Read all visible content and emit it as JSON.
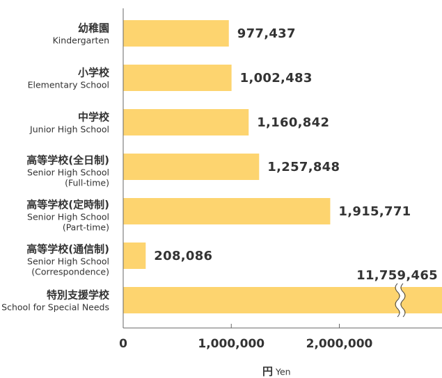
{
  "chart_data": {
    "type": "barh",
    "categories": [
      "幼稚園",
      "小学校",
      "中学校",
      "高等学校(全日制)",
      "高等学校(定時制)",
      "高等学校(通信制)",
      "特別支援学校"
    ],
    "categories_en": [
      [
        "Kindergarten"
      ],
      [
        "Elementary School"
      ],
      [
        "Junior High School"
      ],
      [
        "Senior High School",
        "(Full-time)"
      ],
      [
        "Senior High School",
        "(Part-time)"
      ],
      [
        "Senior High School",
        "(Correspondence)"
      ],
      [
        "School for Special Needs"
      ]
    ],
    "values": [
      977437,
      1002483,
      1160842,
      1257848,
      1915771,
      208086,
      11759465
    ],
    "value_labels": [
      "977,437",
      "1,002,483",
      "1,160,842",
      "1,257,848",
      "1,915,771",
      "208,086",
      "11,759,465"
    ],
    "color": "#fdd46f",
    "xlim": [
      0,
      2950000
    ],
    "xticks": [
      0,
      {
        "value": 1000000,
        "label": "1,000,000"
      },
      {
        "value": 2000000,
        "label": "2,000,000"
      }
    ],
    "axis_break": true,
    "xlabel": "円",
    "xlabel_en": "Yen"
  }
}
